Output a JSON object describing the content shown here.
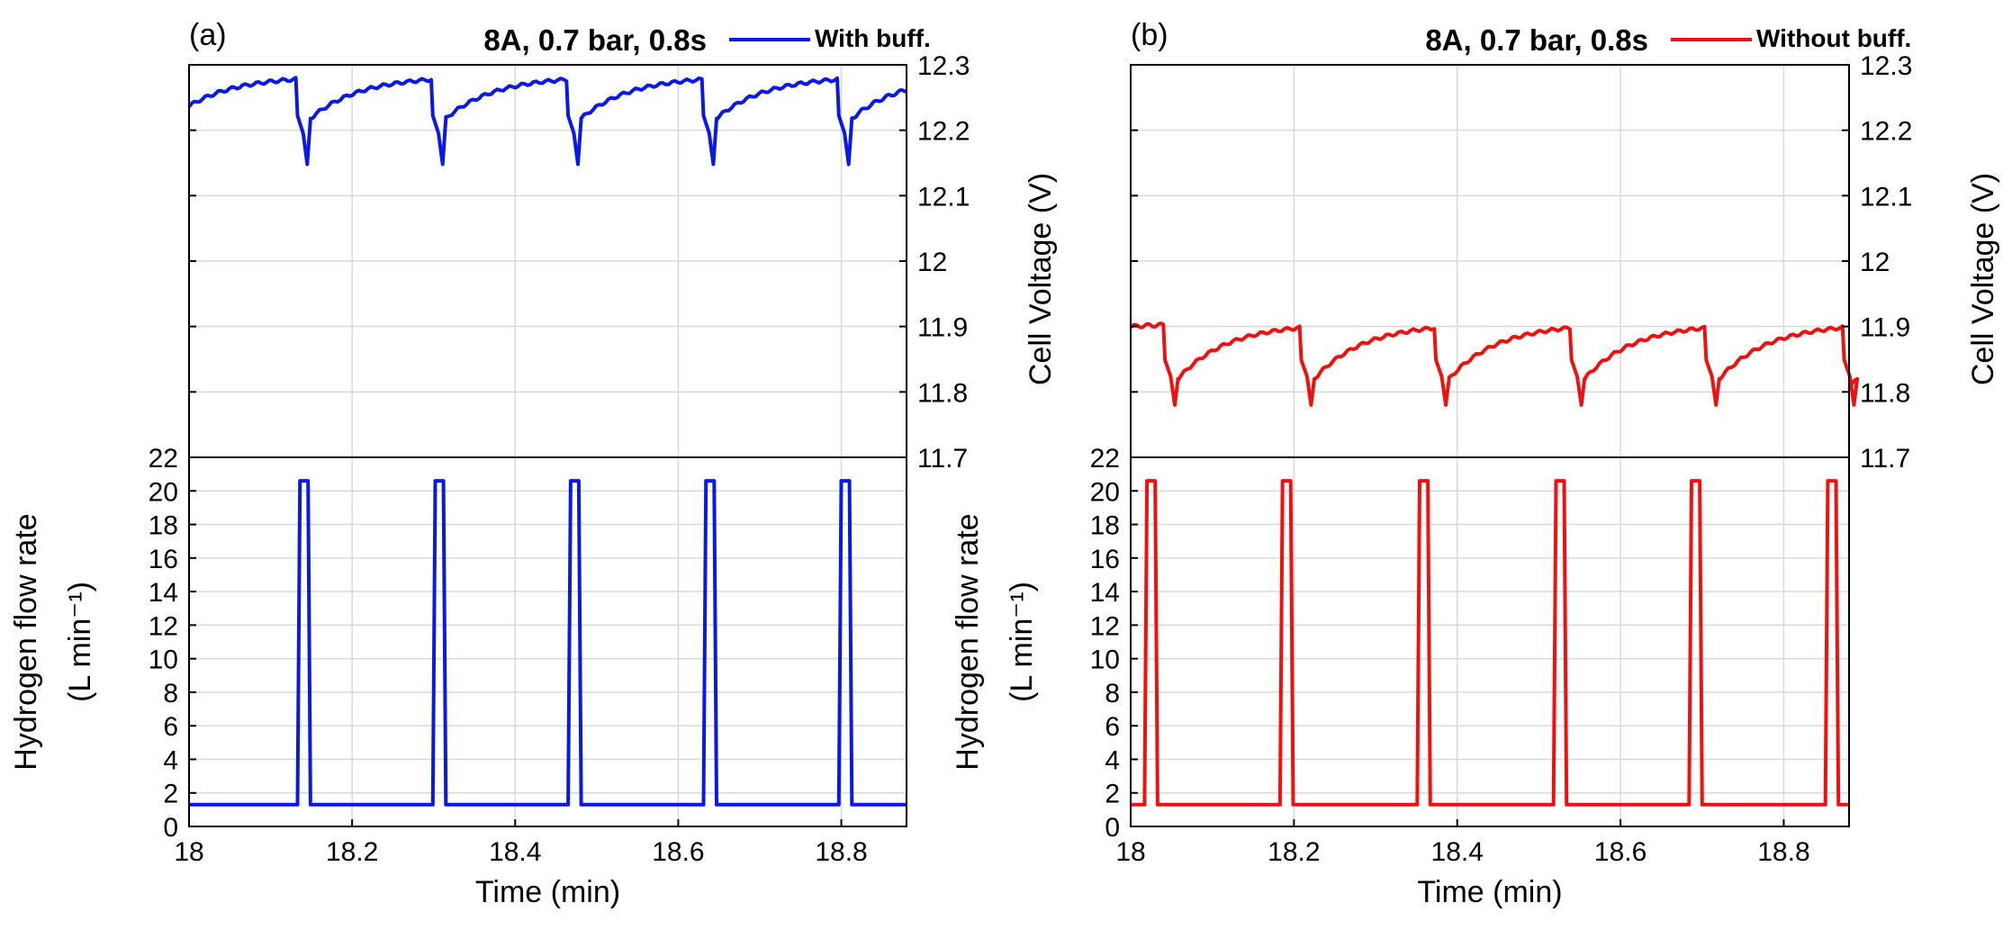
{
  "chart_data": [
    {
      "panel_label": "(a)",
      "title": "8A, 0.7 bar, 0.8s",
      "series_name": "With buff.",
      "color": "#0a18e8",
      "type": "line",
      "xlabel": "Time (min)",
      "xlim": [
        18,
        18.88
      ],
      "xticks": [
        "18",
        "18.2",
        "18.4",
        "18.6",
        "18.8"
      ],
      "voltage": {
        "ylabel": "Cell Voltage (V)",
        "ylim": [
          11.7,
          12.3
        ],
        "yticks": [
          "11.7",
          "11.8",
          "11.9",
          "12",
          "12.1",
          "12.2",
          "12.3"
        ],
        "base": 12.237,
        "peak": 12.283,
        "dip": 12.148,
        "recover": 12.218,
        "cycle_start": 18.0,
        "events": [
          18.131,
          18.297,
          18.463,
          18.629,
          18.795
        ]
      },
      "flow": {
        "ylabel_line1": "Hydrogen flow rate",
        "ylabel_line2": "(L min⁻¹)",
        "ylim": [
          0,
          22
        ],
        "yticks": [
          "0",
          "2",
          "4",
          "6",
          "8",
          "10",
          "12",
          "14",
          "16",
          "18",
          "20",
          "22"
        ],
        "base": 1.3,
        "high": 20.6,
        "pulse_width": 0.016,
        "pulses": [
          18.133,
          18.299,
          18.465,
          18.631,
          18.797
        ]
      }
    },
    {
      "panel_label": "(b)",
      "title": "8A, 0.7 bar, 0.8s",
      "series_name": "Without buff.",
      "color": "#f01010",
      "type": "line",
      "xlabel": "Time (min)",
      "xlim": [
        18,
        18.88
      ],
      "xticks": [
        "18",
        "18.2",
        "18.4",
        "18.6",
        "18.8"
      ],
      "voltage": {
        "ylabel": "Cell Voltage (V)",
        "ylim": [
          11.7,
          12.3
        ],
        "yticks": [
          "11.7",
          "11.8",
          "11.9",
          "12",
          "12.1",
          "12.2",
          "12.3"
        ],
        "base": 11.9,
        "peak": 11.905,
        "dip": 11.78,
        "recover": 11.82,
        "cycle_start": 18.0,
        "events": [
          18.04,
          18.207,
          18.372,
          18.538,
          18.703,
          18.872
        ]
      },
      "flow": {
        "ylabel_line1": "Hydrogen flow rate",
        "ylabel_line2": "(L min⁻¹)",
        "ylim": [
          0,
          22
        ],
        "yticks": [
          "0",
          "2",
          "4",
          "6",
          "8",
          "10",
          "12",
          "14",
          "16",
          "18",
          "20",
          "22"
        ],
        "base": 1.3,
        "high": 20.6,
        "pulse_width": 0.016,
        "pulses": [
          18.017,
          18.183,
          18.351,
          18.518,
          18.684,
          18.851
        ]
      }
    }
  ]
}
